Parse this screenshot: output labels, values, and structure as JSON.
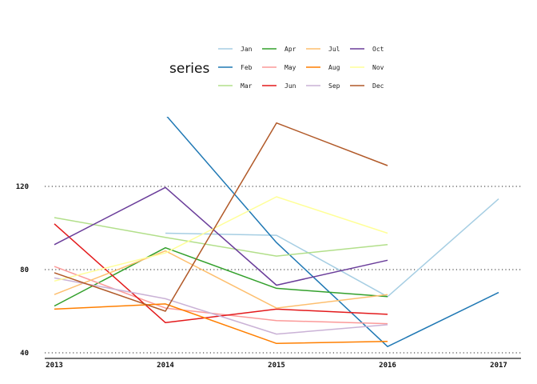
{
  "chart_data": {
    "type": "line",
    "title": "",
    "xlabel": "",
    "ylabel": "",
    "x": [
      2013,
      2014,
      2015,
      2016,
      2017
    ],
    "x_tick_labels": [
      "2013",
      "2014",
      "2015",
      "2016",
      "2017"
    ],
    "y_tick_values": [
      40,
      80,
      120
    ],
    "y_tick_labels": [
      "40",
      "80",
      "120"
    ],
    "ylim": [
      38,
      163
    ],
    "grid": "horizontal dotted",
    "legend": {
      "title": "series",
      "placement": "top-center",
      "columns": 4,
      "rows": 3
    },
    "series": [
      {
        "name": "Jan",
        "color": "#a6cee3",
        "values": [
          null,
          97.5,
          96.5,
          67,
          114
        ]
      },
      {
        "name": "Feb",
        "color": "#1f78b4",
        "values": [
          null,
          154.5,
          93,
          43,
          69
        ]
      },
      {
        "name": "Mar",
        "color": "#b2df8a",
        "values": [
          105,
          95.5,
          86.5,
          92,
          null
        ]
      },
      {
        "name": "Apr",
        "color": "#33a02c",
        "values": [
          62.5,
          90.5,
          71,
          67,
          null
        ]
      },
      {
        "name": "May",
        "color": "#fb9a99",
        "values": [
          81.5,
          61.5,
          55.5,
          54,
          null
        ]
      },
      {
        "name": "Jun",
        "color": "#e31a1c",
        "values": [
          102,
          54.5,
          61,
          58.5,
          null
        ]
      },
      {
        "name": "Jul",
        "color": "#fdbf6f",
        "values": [
          68,
          89,
          61.5,
          68,
          null
        ]
      },
      {
        "name": "Aug",
        "color": "#ff7f00",
        "values": [
          61,
          63.5,
          44.5,
          45.5,
          null
        ]
      },
      {
        "name": "Sep",
        "color": "#cab2d6",
        "values": [
          76,
          66,
          49,
          53.5,
          null
        ]
      },
      {
        "name": "Oct",
        "color": "#6a3d9a",
        "values": [
          92,
          119.5,
          72.5,
          84.5,
          null
        ]
      },
      {
        "name": "Nov",
        "color": "#ffff99",
        "values": [
          74.5,
          88,
          115,
          97.5,
          null
        ]
      },
      {
        "name": "Dec",
        "color": "#b15928",
        "values": [
          78.5,
          60,
          150.5,
          130,
          null
        ]
      }
    ]
  }
}
